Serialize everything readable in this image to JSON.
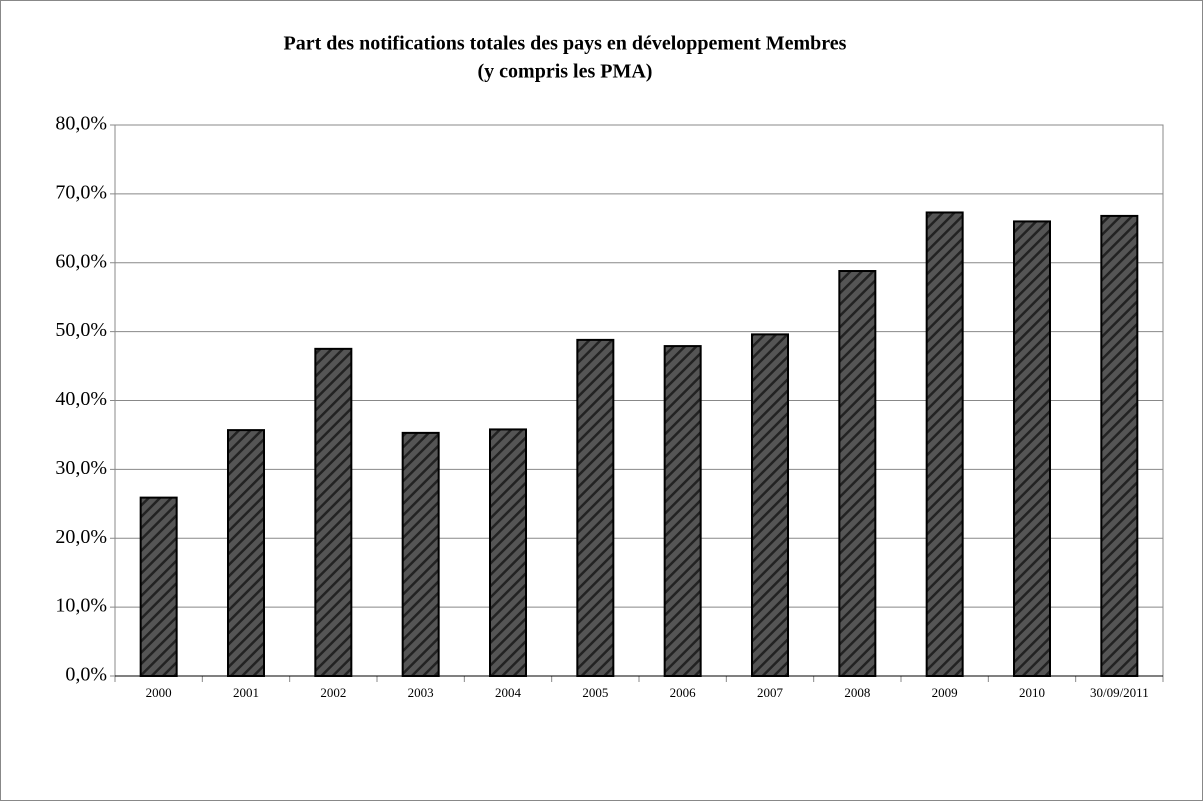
{
  "chart_data": {
    "type": "bar",
    "title": [
      "Part des notifications totales des pays en développement Membres",
      "(y compris les PMA)"
    ],
    "categories": [
      "2000",
      "2001",
      "2002",
      "2003",
      "2004",
      "2005",
      "2006",
      "2007",
      "2008",
      "2009",
      "2010",
      "30/09/2011"
    ],
    "values": [
      25.9,
      35.7,
      47.5,
      35.3,
      35.8,
      48.8,
      47.9,
      49.6,
      58.8,
      67.3,
      66.0,
      66.8
    ],
    "color": "#555555",
    "ylim": [
      0,
      80
    ],
    "yticks": [
      {
        "value": 0,
        "label": "0,0%"
      },
      {
        "value": 10,
        "label": "10,0%"
      },
      {
        "value": 20,
        "label": "20,0%"
      },
      {
        "value": 30,
        "label": "30,0%"
      },
      {
        "value": 40,
        "label": "40,0%"
      },
      {
        "value": 50,
        "label": "50,0%"
      },
      {
        "value": 60,
        "label": "60,0%"
      },
      {
        "value": 70,
        "label": "70,0%"
      },
      {
        "value": 80,
        "label": "80,0%"
      }
    ],
    "grid": true
  }
}
